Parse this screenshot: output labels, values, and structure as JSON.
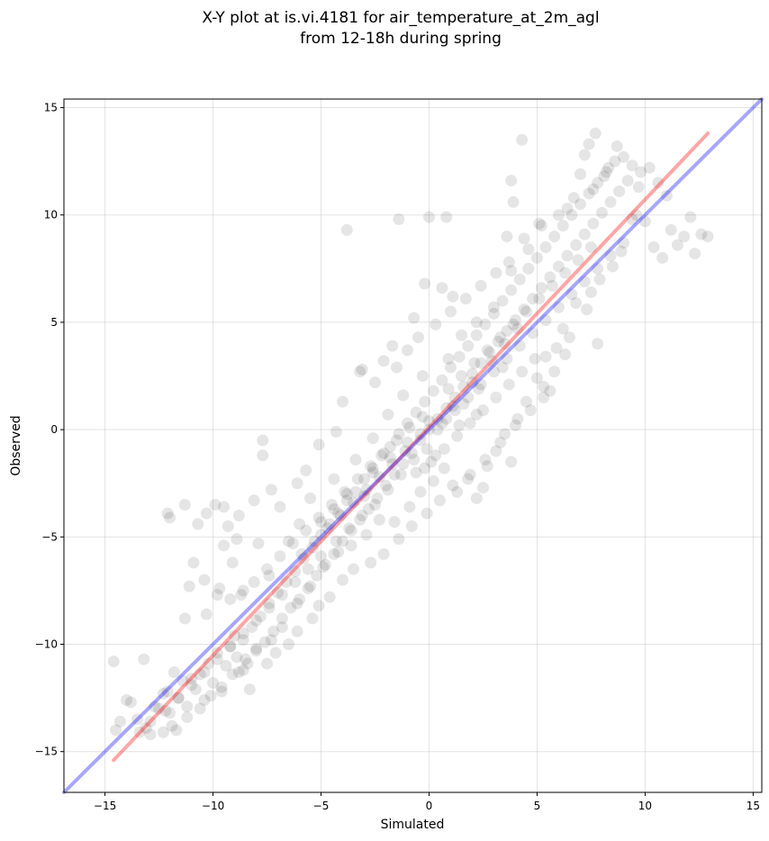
{
  "chart_data": {
    "type": "scatter",
    "title": "X-Y plot at is.vi.4181 for air_temperature_at_2m_agl",
    "subtitle": "from 12-18h during spring",
    "xlabel": "Simulated",
    "ylabel": "Observed",
    "xlim": [
      -16.9,
      15.4
    ],
    "ylim": [
      -16.9,
      15.4
    ],
    "xticks": [
      -15,
      -10,
      -5,
      0,
      5,
      10,
      15
    ],
    "yticks": [
      -15,
      -10,
      -5,
      0,
      5,
      10,
      15
    ],
    "tick_labels_x": [
      "−15",
      "−10",
      "−5",
      "0",
      "5",
      "10",
      "15"
    ],
    "tick_labels_y": [
      "−15",
      "−10",
      "−5",
      "0",
      "5",
      "10",
      "15"
    ],
    "grid": true,
    "point_color": "#000000",
    "point_alpha": 0.1,
    "lines": [
      {
        "color": "#ff0000",
        "alpha": 0.35,
        "x": [
          -14.6,
          12.9
        ],
        "y": [
          -15.4,
          13.8
        ]
      },
      {
        "color": "#0000ff",
        "alpha": 0.35,
        "x": [
          -16.9,
          15.4
        ],
        "y": [
          -16.9,
          15.4
        ]
      }
    ],
    "points": [
      [
        -14.6,
        -10.8
      ],
      [
        -14.5,
        -14.0
      ],
      [
        -14.3,
        -13.6
      ],
      [
        -14.0,
        -12.6
      ],
      [
        -13.8,
        -12.7
      ],
      [
        -13.5,
        -13.5
      ],
      [
        -13.2,
        -10.7
      ],
      [
        -13.1,
        -13.9
      ],
      [
        -12.9,
        -13.6
      ],
      [
        -12.7,
        -12.9
      ],
      [
        -12.5,
        -13.0
      ],
      [
        -12.3,
        -12.3
      ],
      [
        -12.1,
        -12.2
      ],
      [
        -12.0,
        -13.2
      ],
      [
        -11.9,
        -13.8
      ],
      [
        -11.8,
        -11.3
      ],
      [
        -11.6,
        -12.5
      ],
      [
        -11.4,
        -11.7
      ],
      [
        -11.2,
        -12.9
      ],
      [
        -11.0,
        -11.6
      ],
      [
        -10.8,
        -12.1
      ],
      [
        -10.6,
        -11.4
      ],
      [
        -10.4,
        -12.6
      ],
      [
        -10.2,
        -10.9
      ],
      [
        -10.0,
        -11.8
      ],
      [
        -9.8,
        -10.4
      ],
      [
        -9.6,
        -12.2
      ],
      [
        -9.4,
        -11.0
      ],
      [
        -9.2,
        -10.1
      ],
      [
        -9.0,
        -9.6
      ],
      [
        -8.8,
        -11.3
      ],
      [
        -8.6,
        -9.8
      ],
      [
        -8.4,
        -10.9
      ],
      [
        -8.2,
        -9.2
      ],
      [
        -8.0,
        -10.3
      ],
      [
        -7.8,
        -8.7
      ],
      [
        -7.6,
        -9.9
      ],
      [
        -7.4,
        -8.1
      ],
      [
        -7.2,
        -9.4
      ],
      [
        -7.0,
        -7.6
      ],
      [
        -6.8,
        -8.8
      ],
      [
        -6.6,
        -7.1
      ],
      [
        -6.4,
        -8.3
      ],
      [
        -6.2,
        -6.6
      ],
      [
        -6.0,
        -7.9
      ],
      [
        -5.8,
        -6.0
      ],
      [
        -5.6,
        -7.4
      ],
      [
        -5.4,
        -5.5
      ],
      [
        -5.2,
        -6.8
      ],
      [
        -5.0,
        -4.9
      ],
      [
        -4.8,
        -6.3
      ],
      [
        -4.6,
        -4.4
      ],
      [
        -4.4,
        -5.8
      ],
      [
        -4.2,
        -3.9
      ],
      [
        -4.0,
        -5.2
      ],
      [
        -3.8,
        -3.3
      ],
      [
        -3.6,
        -4.7
      ],
      [
        -3.4,
        -2.9
      ],
      [
        -3.2,
        -4.2
      ],
      [
        -3.0,
        -2.3
      ],
      [
        -2.8,
        -3.7
      ],
      [
        -2.6,
        -1.8
      ],
      [
        -2.4,
        -3.2
      ],
      [
        -2.2,
        -1.2
      ],
      [
        -2.0,
        -2.6
      ],
      [
        -1.8,
        -0.8
      ],
      [
        -1.6,
        -2.1
      ],
      [
        -1.4,
        -0.2
      ],
      [
        -1.2,
        -1.6
      ],
      [
        -1.0,
        0.3
      ],
      [
        -0.8,
        -1.1
      ],
      [
        -0.6,
        0.8
      ],
      [
        -0.4,
        -0.5
      ],
      [
        -0.2,
        1.3
      ],
      [
        0.0,
        0.0
      ],
      [
        0.2,
        1.8
      ],
      [
        0.4,
        0.5
      ],
      [
        0.6,
        2.3
      ],
      [
        0.8,
        1.0
      ],
      [
        1.0,
        2.9
      ],
      [
        1.2,
        1.5
      ],
      [
        1.4,
        3.4
      ],
      [
        1.6,
        2.0
      ],
      [
        1.8,
        3.9
      ],
      [
        2.0,
        2.6
      ],
      [
        2.2,
        4.4
      ],
      [
        2.4,
        3.1
      ],
      [
        2.6,
        4.9
      ],
      [
        2.8,
        3.6
      ],
      [
        3.0,
        5.4
      ],
      [
        3.2,
        4.1
      ],
      [
        3.4,
        6.0
      ],
      [
        3.6,
        4.6
      ],
      [
        3.8,
        6.5
      ],
      [
        4.0,
        5.1
      ],
      [
        4.2,
        7.0
      ],
      [
        4.4,
        5.6
      ],
      [
        4.6,
        7.5
      ],
      [
        4.8,
        6.1
      ],
      [
        5.0,
        8.0
      ],
      [
        5.2,
        6.6
      ],
      [
        5.4,
        8.5
      ],
      [
        5.6,
        7.1
      ],
      [
        5.8,
        9.0
      ],
      [
        6.0,
        7.6
      ],
      [
        6.2,
        9.5
      ],
      [
        6.4,
        8.1
      ],
      [
        6.6,
        10.0
      ],
      [
        6.8,
        8.6
      ],
      [
        7.0,
        10.5
      ],
      [
        7.2,
        9.1
      ],
      [
        7.4,
        11.0
      ],
      [
        7.6,
        9.6
      ],
      [
        7.8,
        11.5
      ],
      [
        8.0,
        10.1
      ],
      [
        8.2,
        12.0
      ],
      [
        8.4,
        10.6
      ],
      [
        8.6,
        12.5
      ],
      [
        8.8,
        11.1
      ],
      [
        9.0,
        12.7
      ],
      [
        9.2,
        11.6
      ],
      [
        9.4,
        12.3
      ],
      [
        9.6,
        10.0
      ],
      [
        9.8,
        12.0
      ],
      [
        10.0,
        9.7
      ],
      [
        10.2,
        12.2
      ],
      [
        10.4,
        8.5
      ],
      [
        10.6,
        11.5
      ],
      [
        10.8,
        8.0
      ],
      [
        11.0,
        10.9
      ],
      [
        11.2,
        9.3
      ],
      [
        11.5,
        8.6
      ],
      [
        11.8,
        9.0
      ],
      [
        12.1,
        9.9
      ],
      [
        12.3,
        8.2
      ],
      [
        12.6,
        9.1
      ],
      [
        12.9,
        9.0
      ],
      [
        7.7,
        13.8
      ],
      [
        7.4,
        13.3
      ],
      [
        7.2,
        12.8
      ],
      [
        4.3,
        13.5
      ],
      [
        3.8,
        11.6
      ],
      [
        3.9,
        10.6
      ],
      [
        3.6,
        9.0
      ],
      [
        -1.4,
        9.8
      ],
      [
        0.0,
        9.9
      ],
      [
        0.8,
        9.9
      ],
      [
        -3.8,
        9.3
      ],
      [
        0.6,
        6.6
      ],
      [
        -0.2,
        6.8
      ],
      [
        1.1,
        6.2
      ],
      [
        -0.7,
        5.2
      ],
      [
        -1.7,
        3.9
      ],
      [
        -2.5,
        2.2
      ],
      [
        -3.1,
        2.8
      ],
      [
        -1.5,
        2.9
      ],
      [
        -4.0,
        1.3
      ],
      [
        -4.3,
        -0.1
      ],
      [
        -5.1,
        -0.7
      ],
      [
        -5.7,
        -1.9
      ],
      [
        -6.1,
        -2.5
      ],
      [
        -7.7,
        -0.5
      ],
      [
        -7.7,
        -1.2
      ],
      [
        -8.1,
        -3.3
      ],
      [
        -7.3,
        -2.8
      ],
      [
        -6.9,
        -3.6
      ],
      [
        -8.8,
        -4.0
      ],
      [
        -9.5,
        -3.6
      ],
      [
        -9.9,
        -3.5
      ],
      [
        -10.3,
        -3.9
      ],
      [
        -11.3,
        -3.5
      ],
      [
        -12.0,
        -4.1
      ],
      [
        -12.1,
        -3.9
      ],
      [
        -10.7,
        -4.4
      ],
      [
        -9.3,
        -4.5
      ],
      [
        -8.9,
        -5.1
      ],
      [
        -9.5,
        -5.4
      ],
      [
        -10.9,
        -6.2
      ],
      [
        -10.4,
        -7.0
      ],
      [
        -11.1,
        -7.3
      ],
      [
        -9.8,
        -7.7
      ],
      [
        -9.2,
        -7.9
      ],
      [
        -10.3,
        -8.6
      ],
      [
        -11.3,
        -8.8
      ],
      [
        -9.7,
        -7.4
      ],
      [
        -8.6,
        -7.5
      ],
      [
        -9.1,
        -6.2
      ],
      [
        -7.4,
        -6.8
      ],
      [
        -7.9,
        -5.3
      ],
      [
        -6.5,
        -5.2
      ],
      [
        -6.0,
        -4.4
      ],
      [
        -5.5,
        -3.2
      ],
      [
        -4.4,
        -2.3
      ],
      [
        -3.4,
        -1.4
      ],
      [
        -2.6,
        -0.4
      ],
      [
        -1.9,
        0.7
      ],
      [
        -1.2,
        1.6
      ],
      [
        -0.3,
        2.5
      ],
      [
        0.9,
        3.3
      ],
      [
        1.5,
        4.4
      ],
      [
        2.2,
        5.0
      ],
      [
        3.0,
        5.7
      ],
      [
        3.8,
        7.4
      ],
      [
        4.6,
        8.4
      ],
      [
        5.2,
        9.5
      ],
      [
        6.4,
        10.3
      ],
      [
        7.0,
        11.9
      ],
      [
        8.3,
        12.2
      ],
      [
        8.7,
        13.2
      ],
      [
        9.7,
        11.3
      ],
      [
        9.4,
        9.8
      ],
      [
        8.9,
        8.3
      ],
      [
        8.5,
        7.6
      ],
      [
        7.9,
        7.0
      ],
      [
        7.5,
        6.4
      ],
      [
        6.8,
        5.9
      ],
      [
        6.2,
        4.7
      ],
      [
        7.3,
        5.6
      ],
      [
        7.8,
        4.0
      ],
      [
        6.5,
        4.3
      ],
      [
        5.4,
        3.4
      ],
      [
        5.9,
        3.8
      ],
      [
        5.0,
        2.4
      ],
      [
        5.3,
        1.5
      ],
      [
        5.6,
        1.8
      ],
      [
        4.5,
        1.3
      ],
      [
        4.1,
        0.5
      ],
      [
        3.5,
        -0.2
      ],
      [
        3.8,
        -1.5
      ],
      [
        3.1,
        -1.0
      ],
      [
        2.7,
        -1.7
      ],
      [
        2.5,
        -2.7
      ],
      [
        2.2,
        -3.2
      ],
      [
        1.8,
        -2.3
      ],
      [
        1.3,
        -2.9
      ],
      [
        0.7,
        -1.8
      ],
      [
        0.2,
        -2.4
      ],
      [
        -0.4,
        -2.9
      ],
      [
        -0.9,
        -3.6
      ],
      [
        -1.6,
        -4.3
      ],
      [
        -2.3,
        -4.2
      ],
      [
        -2.9,
        -4.9
      ],
      [
        -3.6,
        -5.4
      ],
      [
        -4.2,
        -5.7
      ],
      [
        -4.9,
        -6.4
      ],
      [
        -5.5,
        -7.3
      ],
      [
        -6.1,
        -8.1
      ],
      [
        -6.8,
        -9.2
      ],
      [
        -7.3,
        -9.8
      ],
      [
        -8.0,
        -10.2
      ],
      [
        -8.5,
        -10.7
      ],
      [
        -9.1,
        -11.4
      ],
      [
        -9.6,
        -12.0
      ],
      [
        -10.1,
        -12.4
      ],
      [
        -10.6,
        -13.0
      ],
      [
        -11.2,
        -13.4
      ],
      [
        -11.7,
        -14.0
      ],
      [
        -12.3,
        -14.1
      ],
      [
        -12.9,
        -14.2
      ],
      [
        -13.4,
        -14.1
      ],
      [
        -8.3,
        -12.1
      ],
      [
        -8.6,
        -11.2
      ],
      [
        -8.9,
        -10.6
      ],
      [
        -7.5,
        -10.9
      ],
      [
        -7.1,
        -10.4
      ],
      [
        -6.5,
        -10.0
      ],
      [
        -6.1,
        -9.4
      ],
      [
        -5.4,
        -8.8
      ],
      [
        -5.1,
        -8.2
      ],
      [
        -4.6,
        -7.8
      ],
      [
        -4.0,
        -7.0
      ],
      [
        -3.5,
        -6.5
      ],
      [
        -2.7,
        -6.2
      ],
      [
        -2.1,
        -5.8
      ],
      [
        -1.4,
        -5.1
      ],
      [
        -0.8,
        -4.5
      ],
      [
        -0.1,
        -3.9
      ],
      [
        0.5,
        -3.3
      ],
      [
        1.1,
        -2.6
      ],
      [
        1.9,
        -2.1
      ],
      [
        2.6,
        -1.4
      ],
      [
        3.3,
        -0.6
      ],
      [
        4.0,
        0.2
      ],
      [
        4.7,
        0.9
      ],
      [
        5.3,
        2.0
      ],
      [
        5.8,
        2.7
      ],
      [
        6.3,
        3.5
      ],
      [
        -3.2,
        2.7
      ],
      [
        -2.1,
        3.2
      ],
      [
        -1.0,
        3.7
      ],
      [
        -0.5,
        4.3
      ],
      [
        0.3,
        4.9
      ],
      [
        1.0,
        5.5
      ],
      [
        1.7,
        6.1
      ],
      [
        2.4,
        6.7
      ],
      [
        3.1,
        7.3
      ],
      [
        3.7,
        7.8
      ],
      [
        4.4,
        8.9
      ],
      [
        5.1,
        9.6
      ],
      [
        6.0,
        10.0
      ],
      [
        6.7,
        10.8
      ],
      [
        7.6,
        11.2
      ],
      [
        8.1,
        11.8
      ],
      [
        -0.1,
        -0.9
      ],
      [
        -0.7,
        -1.4
      ],
      [
        -1.3,
        -2.1
      ],
      [
        -1.9,
        -2.8
      ],
      [
        -2.5,
        -3.5
      ],
      [
        -3.1,
        -4.0
      ],
      [
        -3.7,
        -4.6
      ],
      [
        -4.3,
        -5.2
      ],
      [
        -5.0,
        -5.9
      ],
      [
        -5.6,
        -6.5
      ],
      [
        -6.2,
        -7.1
      ],
      [
        -6.8,
        -7.7
      ],
      [
        -7.4,
        -8.3
      ],
      [
        -8.0,
        -8.9
      ],
      [
        -8.6,
        -9.5
      ],
      [
        -9.2,
        -10.1
      ],
      [
        -9.8,
        -10.7
      ],
      [
        -10.4,
        -11.3
      ],
      [
        -11.0,
        -11.9
      ],
      [
        -11.6,
        -12.5
      ],
      [
        -12.2,
        -13.1
      ],
      [
        0.6,
        0.3
      ],
      [
        1.2,
        0.9
      ],
      [
        1.8,
        1.5
      ],
      [
        2.4,
        2.1
      ],
      [
        3.0,
        2.7
      ],
      [
        3.6,
        3.3
      ],
      [
        4.2,
        3.9
      ],
      [
        4.8,
        4.5
      ],
      [
        5.4,
        5.1
      ],
      [
        6.0,
        5.7
      ],
      [
        6.6,
        6.3
      ],
      [
        7.2,
        6.9
      ],
      [
        7.8,
        7.5
      ],
      [
        8.4,
        8.1
      ],
      [
        9.0,
        8.7
      ],
      [
        -0.3,
        0.6
      ],
      [
        -0.9,
        0.1
      ],
      [
        -1.5,
        -0.5
      ],
      [
        -2.1,
        -1.1
      ],
      [
        -2.7,
        -1.7
      ],
      [
        -3.3,
        -2.3
      ],
      [
        -3.9,
        -2.9
      ],
      [
        -4.5,
        -3.5
      ],
      [
        -5.1,
        -4.1
      ],
      [
        -5.7,
        -4.7
      ],
      [
        -6.3,
        -5.3
      ],
      [
        -6.9,
        -5.9
      ],
      [
        -7.5,
        -6.5
      ],
      [
        -8.1,
        -7.1
      ],
      [
        -8.7,
        -7.7
      ],
      [
        0.9,
        1.9
      ],
      [
        1.5,
        2.5
      ],
      [
        2.1,
        3.1
      ],
      [
        2.7,
        3.7
      ],
      [
        3.3,
        4.3
      ],
      [
        3.9,
        4.9
      ],
      [
        4.5,
        5.5
      ],
      [
        5.1,
        6.1
      ],
      [
        5.7,
        6.7
      ],
      [
        6.3,
        7.3
      ],
      [
        6.9,
        7.9
      ],
      [
        7.5,
        8.5
      ],
      [
        0.1,
        -1.5
      ],
      [
        0.7,
        -0.9
      ],
      [
        1.3,
        -0.3
      ],
      [
        1.9,
        0.3
      ],
      [
        2.5,
        0.9
      ],
      [
        3.1,
        1.5
      ],
      [
        3.7,
        2.1
      ],
      [
        4.3,
        2.7
      ],
      [
        4.9,
        3.3
      ],
      [
        -1.1,
        -1.0
      ],
      [
        -1.7,
        -1.6
      ],
      [
        -2.3,
        -2.2
      ],
      [
        -2.9,
        -2.8
      ],
      [
        -3.5,
        -3.4
      ],
      [
        -4.1,
        -4.0
      ],
      [
        -4.7,
        -4.6
      ],
      [
        -5.3,
        -5.2
      ],
      [
        -5.9,
        -5.8
      ],
      [
        0.4,
        0.0
      ],
      [
        0.0,
        0.4
      ],
      [
        -0.4,
        -0.2
      ],
      [
        0.8,
        0.5
      ],
      [
        1.6,
        1.2
      ],
      [
        2.3,
        1.9
      ],
      [
        3.4,
        2.9
      ],
      [
        -1.8,
        -1.3
      ],
      [
        -2.6,
        -2.0
      ],
      [
        -3.0,
        -3.1
      ],
      [
        -0.6,
        -2.0
      ],
      [
        -0.2,
        -1.8
      ],
      [
        0.3,
        -1.2
      ],
      [
        -1.0,
        -0.6
      ],
      [
        1.1,
        1.1
      ],
      [
        2.0,
        2.2
      ],
      [
        2.9,
        3.2
      ],
      [
        3.5,
        4.0
      ],
      [
        4.1,
        4.7
      ],
      [
        1.4,
        0.2
      ],
      [
        2.2,
        0.7
      ],
      [
        -3.8,
        -3.0
      ],
      [
        -4.4,
        -3.7
      ],
      [
        -5.0,
        -4.3
      ]
    ]
  }
}
